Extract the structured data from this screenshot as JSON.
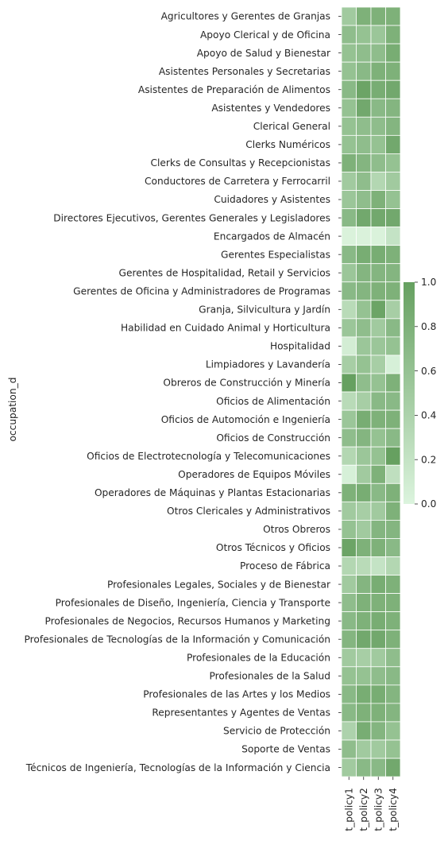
{
  "chart_data": {
    "type": "heatmap",
    "ylabel": "occupation_d",
    "xlabel": "",
    "columns": [
      "t_policy1",
      "t_policy2",
      "t_policy3",
      "t_policy4"
    ],
    "rows": [
      "Agricultores y Gerentes de Granjas",
      "Apoyo Clerical y de Oficina",
      "Apoyo de Salud y Bienestar",
      "Asistentes Personales y Secretarias",
      "Asistentes de Preparación de Alimentos",
      "Asistentes y Vendedores",
      "Clerical General",
      "Clerks Numéricos",
      "Clerks de Consultas y Recepcionistas",
      "Conductores de Carretera y Ferrocarril",
      "Cuidadores y Asistentes",
      "Directores Ejecutivos, Gerentes Generales y Legisladores",
      "Encargados de Almacén",
      "Gerentes Especialistas",
      "Gerentes de Hospitalidad, Retail y Servicios",
      "Gerentes de Oficina y Administradores de Programas",
      "Granja, Silvicultura y Jardín",
      "Habilidad en Cuidado Animal y Horticultura",
      "Hospitalidad",
      "Limpiadores y Lavandería",
      "Obreros de Construcción y Minería",
      "Oficios de Alimentación",
      "Oficios de Automoción e Ingeniería",
      "Oficios de Construcción",
      "Oficios de Electrotecnología y Telecomunicaciones",
      "Operadores de Equipos Móviles",
      "Operadores de Máquinas y Plantas Estacionarias",
      "Otros Clericales y Administrativos",
      "Otros Obreros",
      "Otros Técnicos y Oficios",
      "Proceso de Fábrica",
      "Profesionales Legales, Sociales y de Bienestar",
      "Profesionales de Diseño, Ingeniería, Ciencia y Transporte",
      "Profesionales de Negocios, Recursos Humanos y Marketing",
      "Profesionales de Tecnologías de la Información y Comunicación",
      "Profesionales de la Educación",
      "Profesionales de la Salud",
      "Profesionales de las Artes y los Medios",
      "Representantes y Agentes de Ventas",
      "Servicio de Protección",
      "Soporte de Ventas",
      "Técnicos de Ingeniería, Tecnologías de la Información y Ciencia"
    ],
    "values": [
      [
        0.5,
        0.8,
        0.8,
        0.8
      ],
      [
        0.65,
        0.6,
        0.55,
        0.8
      ],
      [
        0.6,
        0.65,
        0.65,
        0.85
      ],
      [
        0.6,
        0.7,
        0.8,
        0.8
      ],
      [
        0.7,
        0.95,
        0.85,
        0.9
      ],
      [
        0.6,
        0.9,
        0.7,
        0.75
      ],
      [
        0.6,
        0.65,
        0.65,
        0.75
      ],
      [
        0.6,
        0.65,
        0.6,
        0.9
      ],
      [
        0.8,
        0.75,
        0.65,
        0.6
      ],
      [
        0.5,
        0.65,
        0.35,
        0.5
      ],
      [
        0.55,
        0.65,
        0.8,
        0.6
      ],
      [
        0.7,
        0.9,
        0.9,
        0.9
      ],
      [
        0.02,
        0.02,
        0.02,
        0.2
      ],
      [
        0.7,
        0.85,
        0.85,
        0.8
      ],
      [
        0.55,
        0.75,
        0.75,
        0.75
      ],
      [
        0.7,
        0.75,
        0.8,
        0.8
      ],
      [
        0.3,
        0.6,
        0.95,
        0.45
      ],
      [
        0.55,
        0.65,
        0.5,
        0.7
      ],
      [
        0.08,
        0.55,
        0.55,
        0.6
      ],
      [
        0.45,
        0.6,
        0.45,
        0.05
      ],
      [
        1.0,
        0.65,
        0.6,
        0.8
      ],
      [
        0.3,
        0.45,
        0.7,
        0.7
      ],
      [
        0.55,
        0.85,
        0.8,
        0.8
      ],
      [
        0.65,
        0.75,
        0.6,
        0.7
      ],
      [
        0.35,
        0.55,
        0.6,
        1.0
      ],
      [
        0.05,
        0.5,
        0.8,
        0.25
      ],
      [
        0.8,
        0.85,
        0.7,
        0.8
      ],
      [
        0.5,
        0.45,
        0.5,
        0.8
      ],
      [
        0.6,
        0.5,
        0.75,
        0.75
      ],
      [
        0.95,
        0.8,
        0.8,
        0.7
      ],
      [
        0.35,
        0.3,
        0.2,
        0.35
      ],
      [
        0.5,
        0.75,
        0.85,
        0.8
      ],
      [
        0.65,
        0.8,
        0.8,
        0.8
      ],
      [
        0.7,
        0.8,
        0.85,
        0.8
      ],
      [
        0.75,
        0.9,
        0.9,
        0.8
      ],
      [
        0.5,
        0.45,
        0.5,
        0.65
      ],
      [
        0.6,
        0.6,
        0.65,
        0.7
      ],
      [
        0.7,
        0.85,
        0.85,
        0.75
      ],
      [
        0.7,
        0.8,
        0.8,
        0.75
      ],
      [
        0.4,
        0.85,
        0.75,
        0.6
      ],
      [
        0.65,
        0.5,
        0.5,
        0.6
      ],
      [
        0.5,
        0.7,
        0.7,
        0.9
      ]
    ],
    "colorbar": {
      "min": 0.0,
      "max": 1.0,
      "ticks": [
        "0.0",
        "0.2",
        "0.4",
        "0.6",
        "0.8",
        "1.0"
      ]
    },
    "colors": {
      "low": "#dcf4de",
      "high": "#66a060",
      "grid": "#ffffff",
      "text": "#262626"
    },
    "grid": "off",
    "legend": "right"
  }
}
